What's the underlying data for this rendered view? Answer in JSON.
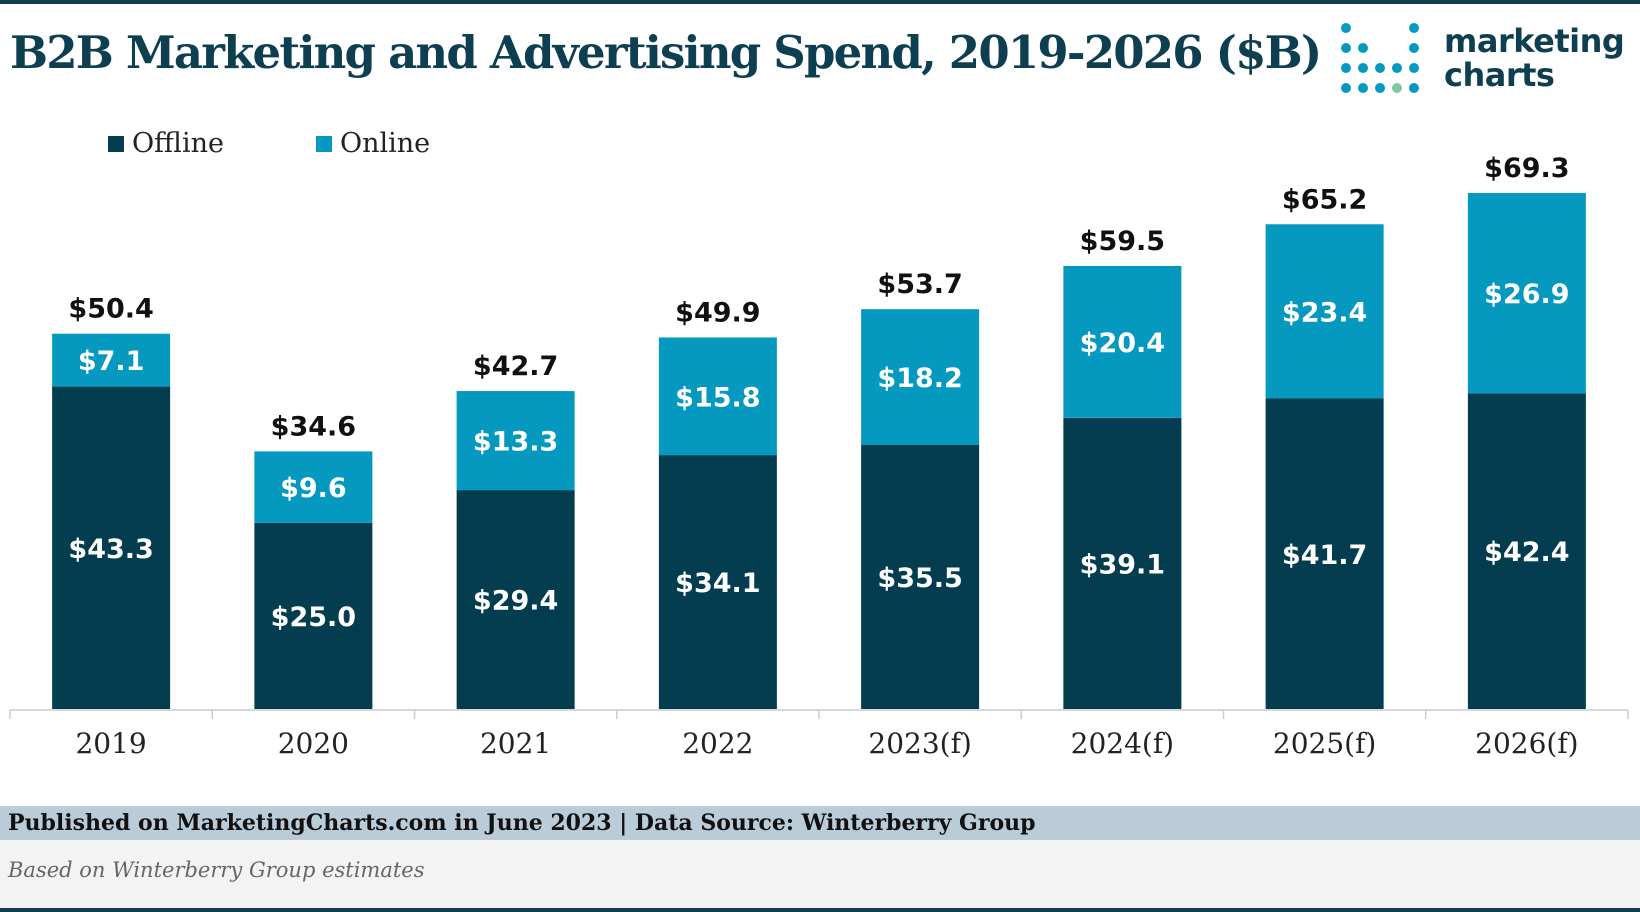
{
  "header": {
    "title": "B2B Marketing and Advertising Spend, 2019-2026 ($B)",
    "logo_line1": "marketing",
    "logo_line2": "charts"
  },
  "legend": {
    "items": [
      {
        "label": "Offline",
        "color": "#043d4f"
      },
      {
        "label": "Online",
        "color": "#0699bf"
      }
    ]
  },
  "chart_data": {
    "type": "bar",
    "stacked": true,
    "categories": [
      "2019",
      "2020",
      "2021",
      "2022",
      "2023(f)",
      "2024(f)",
      "2025(f)",
      "2026(f)"
    ],
    "series": [
      {
        "name": "Offline",
        "color": "#043d4f",
        "values": [
          43.3,
          25.0,
          29.4,
          34.1,
          35.5,
          39.1,
          41.7,
          42.4
        ],
        "labels": [
          "$43.3",
          "$25.0",
          "$29.4",
          "$34.1",
          "$35.5",
          "$39.1",
          "$41.7",
          "$42.4"
        ]
      },
      {
        "name": "Online",
        "color": "#0699bf",
        "values": [
          7.1,
          9.6,
          13.3,
          15.8,
          18.2,
          20.4,
          23.4,
          26.9
        ],
        "labels": [
          "$7.1",
          "$9.6",
          "$13.3",
          "$15.8",
          "$18.2",
          "$20.4",
          "$23.4",
          "$26.9"
        ]
      }
    ],
    "totals": [
      50.4,
      34.6,
      42.7,
      49.9,
      53.7,
      59.5,
      65.2,
      69.3
    ],
    "total_labels": [
      "$50.4",
      "$34.6",
      "$42.7",
      "$49.9",
      "$53.7",
      "$59.5",
      "$65.2",
      "$69.3"
    ],
    "ylim": [
      0,
      69.3
    ],
    "grid": false,
    "legend_position": "top-left"
  },
  "footer": {
    "published": "Published on MarketingCharts.com in June 2023 | Data Source: Winterberry Group",
    "note": "Based on Winterberry Group estimates"
  }
}
